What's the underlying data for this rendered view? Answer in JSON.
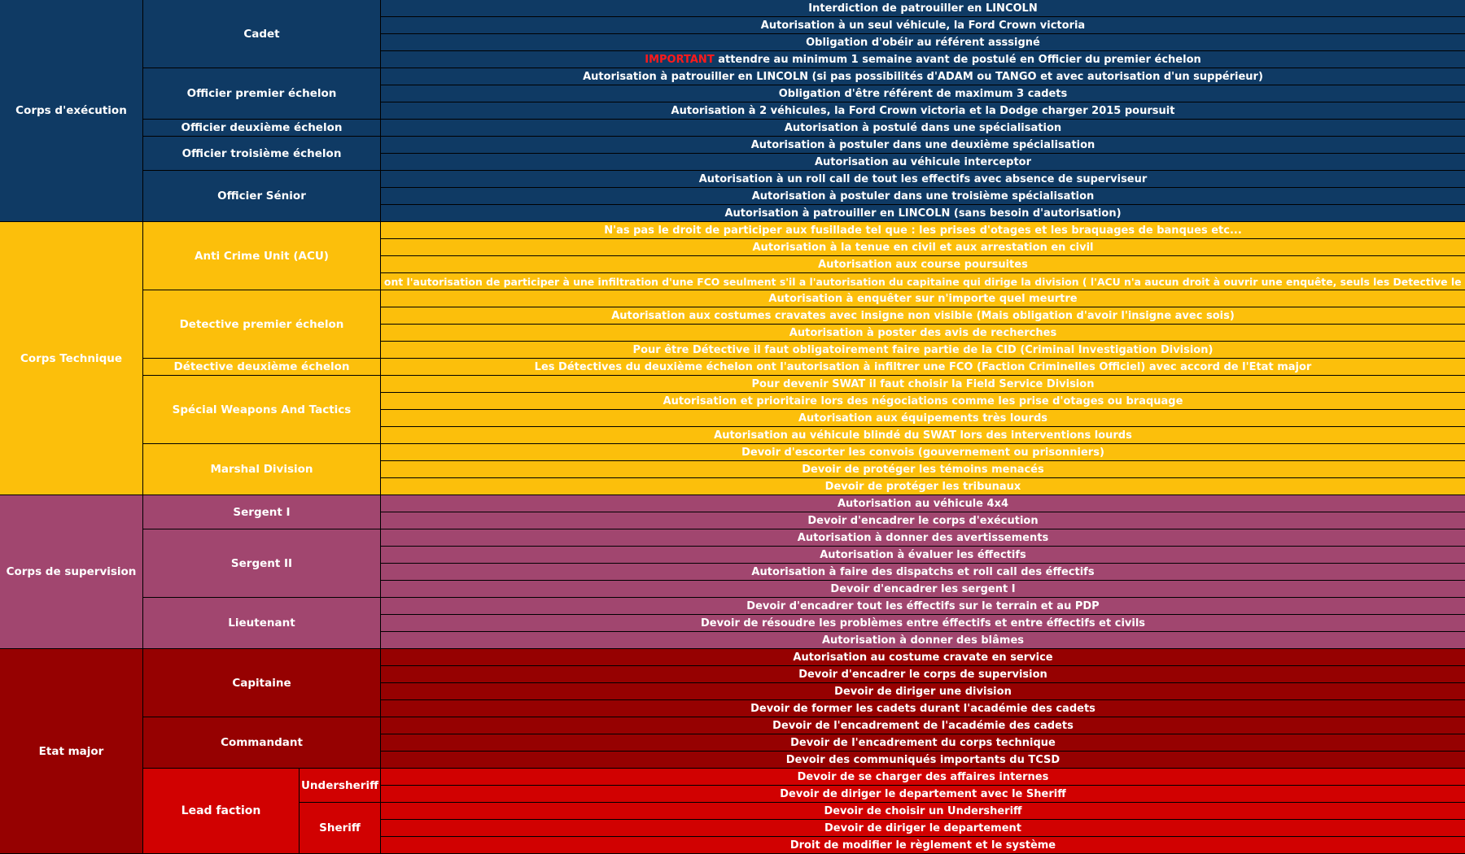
{
  "colors": {
    "execution": "#0f3a64",
    "technique": "#fcbf0b",
    "supervision": "#a1466f",
    "etat_major": "#960101",
    "lead_faction": "#d10101",
    "highlight": "#ff1a1a",
    "text": "#ffffff"
  },
  "sections": [
    {
      "corps": "Corps d'exécution",
      "color": "#0f3a64",
      "grades": [
        {
          "name": "Cadet",
          "rules": [
            "Interdiction de patrouiller en LINCOLN",
            "Autorisation à un seul véhicule, la Ford Crown victoria",
            "Obligation d'obéir au référent asssigné",
            {
              "highlight": "IMPORTANT",
              "text": " attendre au minimum 1 semaine avant de postulé en Officier du premier échelon"
            }
          ]
        },
        {
          "name": "Officier premier échelon",
          "rules": [
            "Autorisation à patrouiller en LINCOLN (si pas possibilités d'ADAM ou TANGO et avec autorisation d'un suppérieur)",
            "Obligation d'être référent de maximum 3 cadets",
            "Autorisation à 2 véhicules, la Ford Crown victoria et la Dodge charger 2015 poursuit"
          ]
        },
        {
          "name": "Officier deuxième échelon",
          "rules": [
            "Autorisation à postulé dans une spécialisation"
          ]
        },
        {
          "name": "Officier troisième échelon",
          "rules": [
            "Autorisation à postuler dans une deuxième spécialisation",
            "Autorisation au véhicule interceptor"
          ]
        },
        {
          "name": "Officier Sénior",
          "rules": [
            "Autorisation à un roll call de tout les effectifs avec absence de superviseur",
            "Autorisation à postuler dans une troisième spécialisation",
            "Autorisation à patrouiller en LINCOLN (sans besoin d'autorisation)"
          ]
        }
      ]
    },
    {
      "corps": "Corps Technique",
      "color": "#fcbf0b",
      "grades": [
        {
          "name": "Anti Crime Unit (ACU)",
          "rules": [
            "N'as pas le droit de participer aux fusillade tel que : les prises d'otages et les braquages de banques etc...",
            "Autorisation à la tenue en civil et aux arrestation en civil",
            "Autorisation aux course poursuites",
            "Les ACU ont l'autorisation de participer à une infiltration d'une FCO seulment s'il a l'autorisation du capitaine qui dirige la division ( l'ACU n'a aucun droit à ouvrir une enquête, seuls les Detective le peuvent"
          ]
        },
        {
          "name": "Detective premier échelon",
          "rules": [
            "Autorisation à enquêter sur n'importe quel meurtre",
            "Autorisation aux costumes cravates avec insigne non visible (Mais obligation d'avoir l'insigne avec sois)",
            "Autorisation à poster des avis de recherches",
            "Pour être Détective il faut obligatoirement faire partie de la CID (Criminal Investigation Division)"
          ]
        },
        {
          "name": "Détective deuxième échelon",
          "rules": [
            "Les Détectives du deuxième échelon ont l'autorisation à infiltrer une FCO (Faction Criminelles Officiel) avec accord de l'Etat major"
          ]
        },
        {
          "name": "Spécial Weapons And Tactics",
          "rules": [
            "Pour devenir SWAT il faut choisir la Field Service Division",
            "Autorisation et prioritaire lors des négociations comme les prise d'otages ou braquage",
            "Autorisation aux équipements très lourds",
            "Autorisation au véhicule blindé du SWAT lors des interventions lourds"
          ]
        },
        {
          "name": "Marshal Division",
          "rules": [
            "Devoir d'escorter les convois (gouvernement ou prisonniers)",
            "Devoir de protéger les témoins menacés",
            "Devoir de protéger les tribunaux"
          ]
        }
      ]
    },
    {
      "corps": "Corps de supervision",
      "color": "#a1466f",
      "grades": [
        {
          "name": "Sergent I",
          "rules": [
            "Autorisation au véhicule 4x4",
            "Devoir d'encadrer le corps d'exécution"
          ]
        },
        {
          "name": "Sergent II",
          "rules": [
            "Autorisation à donner des avertissements",
            "Autorisation à évaluer les éffectifs",
            "Autorisation à faire des dispatchs et roll call des éffectifs",
            "Devoir d'encadrer les sergent I"
          ]
        },
        {
          "name": "Lieutenant",
          "rules": [
            "Devoir d'encadrer tout les éffectifs sur le terrain et au PDP",
            "Devoir de résoudre les problèmes entre éffectifs et entre éffectifs et civils",
            "Autorisation à donner des blâmes"
          ]
        }
      ]
    },
    {
      "corps": "Etat major",
      "color": "#960101",
      "grades": [
        {
          "name": "Capitaine",
          "rules": [
            "Autorisation au costume cravate en service",
            "Devoir d'encadrer le corps de supervision",
            "Devoir de diriger une division",
            "Devoir de former les cadets durant l'académie des cadets"
          ]
        },
        {
          "name": "Commandant",
          "rules": [
            "Devoir de l'encadrement de l'académie des cadets",
            "Devoir de l'encadrement du corps technique",
            "Devoir des communiqués importants du TCSD"
          ]
        }
      ],
      "lead_faction": {
        "name": "Lead faction",
        "color": "#d10101",
        "subgrades": [
          {
            "name": "Undersheriff",
            "rules": [
              "Devoir de se charger des affaires internes",
              "Devoir de diriger le departement avec le Sheriff"
            ]
          },
          {
            "name": "Sheriff",
            "rules": [
              "Devoir de choisir un Undersheriff",
              "Devoir de diriger le departement",
              "Droit de modifier le règlement et le système"
            ]
          }
        ]
      }
    }
  ]
}
